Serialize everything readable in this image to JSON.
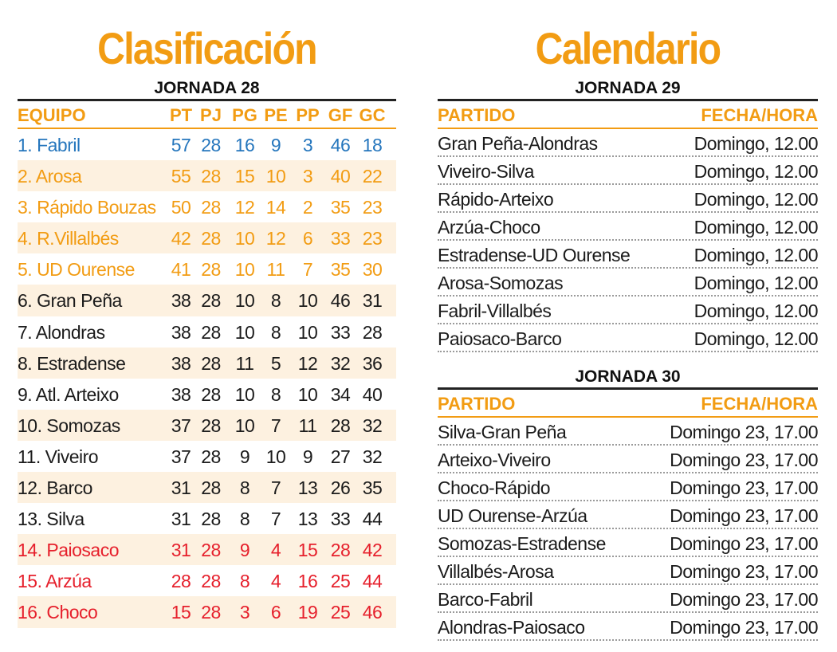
{
  "clasificacion": {
    "title": "Clasificación",
    "jornada": "JORNADA 28",
    "headers": [
      "EQUIPO",
      "PT",
      "PJ",
      "PG",
      "PE",
      "PP",
      "GF",
      "GC"
    ],
    "rows": [
      {
        "team": "1. Fabril",
        "pt": "57",
        "pj": "28",
        "pg": "16",
        "pe": "9",
        "pp": "3",
        "gf": "46",
        "gc": "18",
        "color": "blue"
      },
      {
        "team": "2. Arosa",
        "pt": "55",
        "pj": "28",
        "pg": "15",
        "pe": "10",
        "pp": "3",
        "gf": "40",
        "gc": "22",
        "color": "orange"
      },
      {
        "team": "3. Rápido Bouzas",
        "pt": "50",
        "pj": "28",
        "pg": "12",
        "pe": "14",
        "pp": "2",
        "gf": "35",
        "gc": "23",
        "color": "orange"
      },
      {
        "team": "4. R.Villalbés",
        "pt": "42",
        "pj": "28",
        "pg": "10",
        "pe": "12",
        "pp": "6",
        "gf": "33",
        "gc": "23",
        "color": "orange"
      },
      {
        "team": "5. UD Ourense",
        "pt": "41",
        "pj": "28",
        "pg": "10",
        "pe": "11",
        "pp": "7",
        "gf": "35",
        "gc": "30",
        "color": "orange"
      },
      {
        "team": "6. Gran Peña",
        "pt": "38",
        "pj": "28",
        "pg": "10",
        "pe": "8",
        "pp": "10",
        "gf": "46",
        "gc": "31",
        "color": "black"
      },
      {
        "team": "7. Alondras",
        "pt": "38",
        "pj": "28",
        "pg": "10",
        "pe": "8",
        "pp": "10",
        "gf": "33",
        "gc": "28",
        "color": "black"
      },
      {
        "team": "8. Estradense",
        "pt": "38",
        "pj": "28",
        "pg": "11",
        "pe": "5",
        "pp": "12",
        "gf": "32",
        "gc": "36",
        "color": "black"
      },
      {
        "team": "9. Atl. Arteixo",
        "pt": "38",
        "pj": "28",
        "pg": "10",
        "pe": "8",
        "pp": "10",
        "gf": "34",
        "gc": "40",
        "color": "black"
      },
      {
        "team": "10. Somozas",
        "pt": "37",
        "pj": "28",
        "pg": "10",
        "pe": "7",
        "pp": "11",
        "gf": "28",
        "gc": "32",
        "color": "black"
      },
      {
        "team": "11. Viveiro",
        "pt": "37",
        "pj": "28",
        "pg": "9",
        "pe": "10",
        "pp": "9",
        "gf": "27",
        "gc": "32",
        "color": "black"
      },
      {
        "team": "12. Barco",
        "pt": "31",
        "pj": "28",
        "pg": "8",
        "pe": "7",
        "pp": "13",
        "gf": "26",
        "gc": "35",
        "color": "black"
      },
      {
        "team": "13. Silva",
        "pt": "31",
        "pj": "28",
        "pg": "8",
        "pe": "7",
        "pp": "13",
        "gf": "33",
        "gc": "44",
        "color": "black"
      },
      {
        "team": "14. Paiosaco",
        "pt": "31",
        "pj": "28",
        "pg": "9",
        "pe": "4",
        "pp": "15",
        "gf": "28",
        "gc": "42",
        "color": "red"
      },
      {
        "team": "15. Arzúa",
        "pt": "28",
        "pj": "28",
        "pg": "8",
        "pe": "4",
        "pp": "16",
        "gf": "25",
        "gc": "44",
        "color": "red"
      },
      {
        "team": "16. Choco",
        "pt": "15",
        "pj": "28",
        "pg": "3",
        "pe": "6",
        "pp": "19",
        "gf": "25",
        "gc": "46",
        "color": "red"
      }
    ]
  },
  "calendario": {
    "title": "Calendario",
    "jornada29": {
      "label": "JORNADA 29",
      "headers": [
        "PARTIDO",
        "FECHA/HORA"
      ],
      "matches": [
        {
          "partido": "Gran Peña-Alondras",
          "fecha": "Domingo, 12.00"
        },
        {
          "partido": "Viveiro-Silva",
          "fecha": "Domingo, 12.00"
        },
        {
          "partido": "Rápido-Arteixo",
          "fecha": "Domingo, 12.00"
        },
        {
          "partido": "Arzúa-Choco",
          "fecha": "Domingo, 12.00"
        },
        {
          "partido": "Estradense-UD Ourense",
          "fecha": "Domingo, 12.00"
        },
        {
          "partido": "Arosa-Somozas",
          "fecha": "Domingo, 12.00"
        },
        {
          "partido": "Fabril-Villalbés",
          "fecha": "Domingo, 12.00"
        },
        {
          "partido": "Paiosaco-Barco",
          "fecha": "Domingo, 12.00"
        }
      ]
    },
    "jornada30": {
      "label": "JORNADA 30",
      "headers": [
        "PARTIDO",
        "FECHA/HORA"
      ],
      "matches": [
        {
          "partido": "Silva-Gran Peña",
          "fecha": "Domingo 23, 17.00"
        },
        {
          "partido": "Arteixo-Viveiro",
          "fecha": "Domingo 23, 17.00"
        },
        {
          "partido": "Choco-Rápido",
          "fecha": "Domingo 23, 17.00"
        },
        {
          "partido": "UD Ourense-Arzúa",
          "fecha": "Domingo 23, 17.00"
        },
        {
          "partido": "Somozas-Estradense",
          "fecha": "Domingo 23, 17.00"
        },
        {
          "partido": "Villalbés-Arosa",
          "fecha": "Domingo 23, 17.00"
        },
        {
          "partido": "Barco-Fabril",
          "fecha": "Domingo 23, 17.00"
        },
        {
          "partido": "Alondras-Paiosaco",
          "fecha": "Domingo 23, 17.00"
        }
      ]
    }
  }
}
